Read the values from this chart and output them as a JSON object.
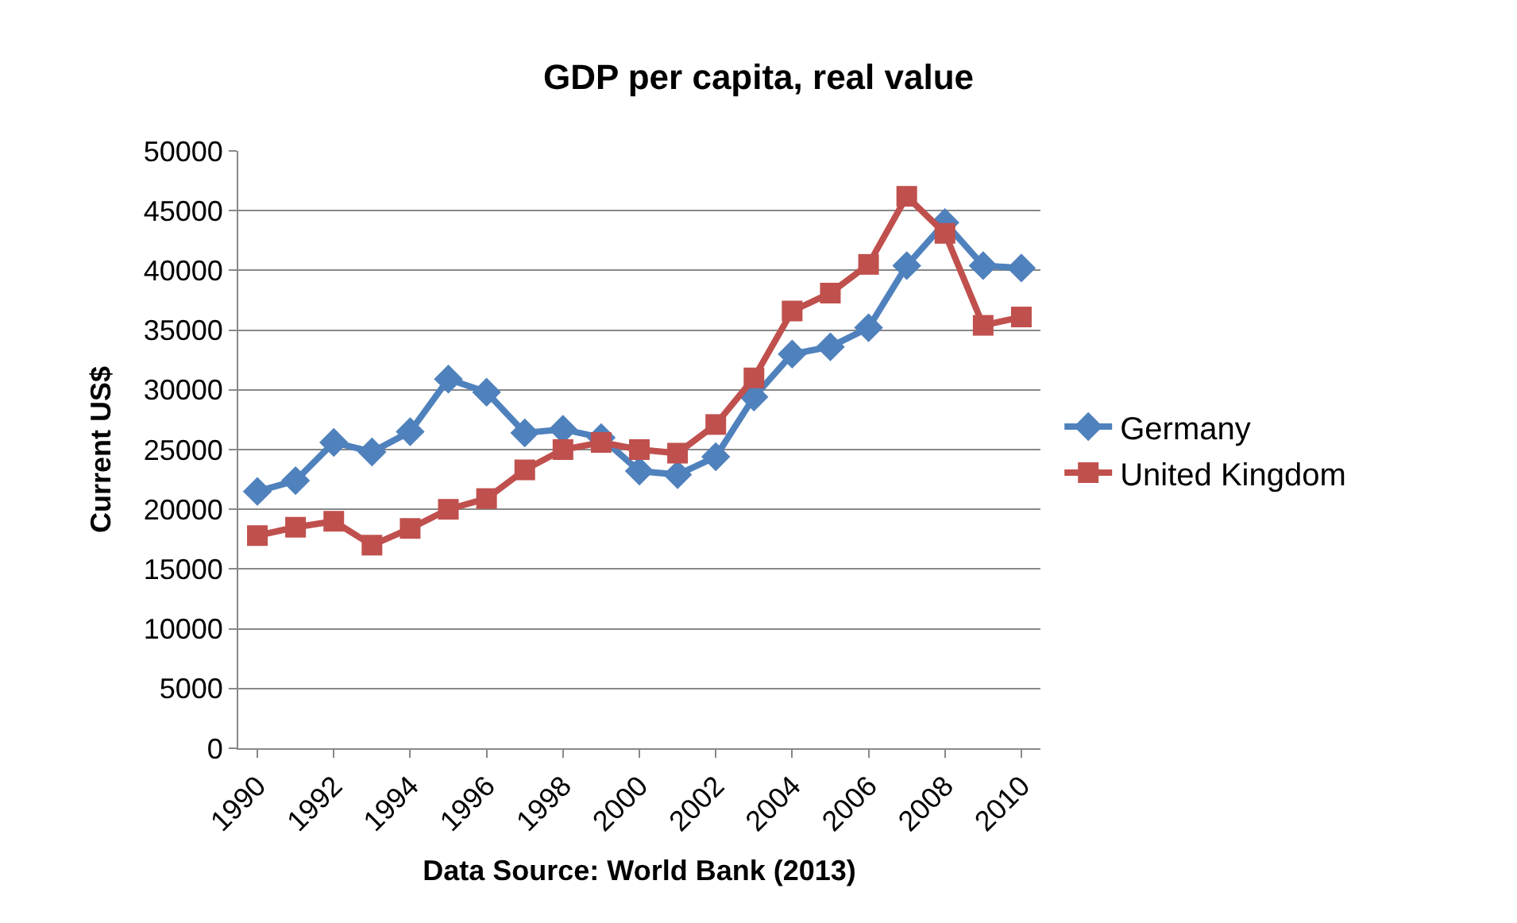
{
  "chart_data": {
    "type": "line",
    "title": "GDP per capita, real value",
    "xlabel": "Data Source: World Bank (2013)",
    "ylabel": "Current US$",
    "x": [
      1990,
      1991,
      1992,
      1993,
      1994,
      1995,
      1996,
      1997,
      1998,
      1999,
      2000,
      2001,
      2002,
      2003,
      2004,
      2005,
      2006,
      2007,
      2008,
      2009,
      2010
    ],
    "series": [
      {
        "name": "Germany",
        "color": "#4f81bd",
        "marker": "diamond",
        "values": [
          21500,
          22400,
          25600,
          24800,
          26500,
          30900,
          29800,
          26400,
          26700,
          26000,
          23200,
          22900,
          24400,
          29400,
          33000,
          33600,
          35200,
          40400,
          44000,
          40400,
          40200
        ]
      },
      {
        "name": "United Kingdom",
        "color": "#c0504d",
        "marker": "square",
        "values": [
          17800,
          18500,
          19000,
          17000,
          18400,
          20000,
          20900,
          23300,
          25000,
          25600,
          25000,
          24700,
          27100,
          31000,
          36600,
          38100,
          40500,
          46200,
          43100,
          35400,
          36100
        ]
      }
    ],
    "xlim": [
      1989.5,
      2010.5
    ],
    "xticks": [
      1990,
      1992,
      1994,
      1996,
      1998,
      2000,
      2002,
      2004,
      2006,
      2008,
      2010
    ],
    "ylim": [
      0,
      50000
    ],
    "yticks": [
      0,
      5000,
      10000,
      15000,
      20000,
      25000,
      30000,
      35000,
      40000,
      45000,
      50000
    ],
    "grid": "y",
    "legend": "right",
    "line_style": "solid"
  }
}
